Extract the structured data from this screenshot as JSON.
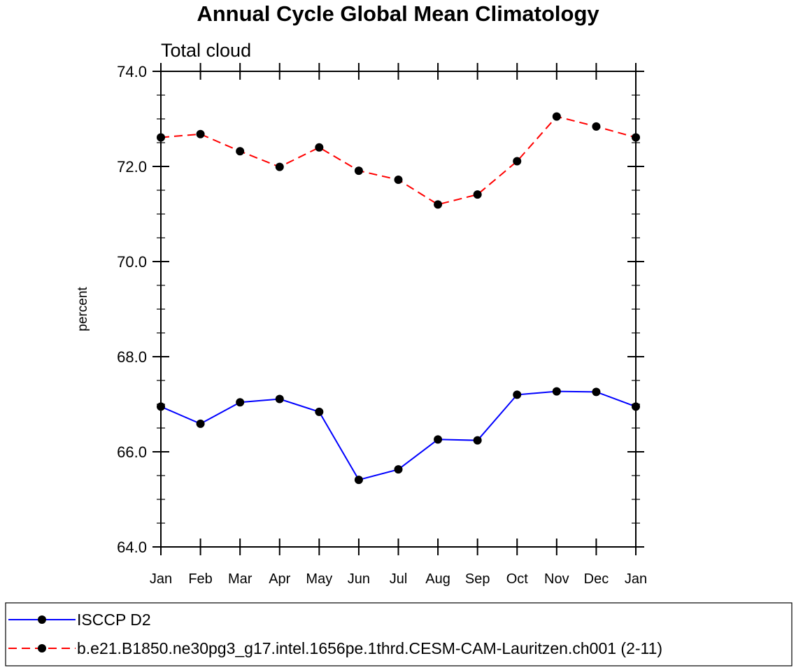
{
  "chart_data": {
    "type": "line",
    "title": "Annual Cycle Global Mean Climatology",
    "subtitle": "Total cloud",
    "ylabel": "percent",
    "xlabel": "",
    "categories": [
      "Jan",
      "Feb",
      "Mar",
      "Apr",
      "May",
      "Jun",
      "Jul",
      "Aug",
      "Sep",
      "Oct",
      "Nov",
      "Dec",
      "Jan"
    ],
    "ylim": [
      64.0,
      74.0
    ],
    "yticks": [
      "64.0",
      "66.0",
      "68.0",
      "70.0",
      "72.0",
      "74.0"
    ],
    "grid": false,
    "legend_position": "bottom",
    "series": [
      {
        "name": "ISCCP D2",
        "color": "#0000ff",
        "dash": "solid",
        "values": [
          66.95,
          66.59,
          67.04,
          67.11,
          66.84,
          65.41,
          65.63,
          66.26,
          66.24,
          67.2,
          67.27,
          67.26,
          66.95
        ]
      },
      {
        "name": "b.e21.B1850.ne30pg3_g17.intel.1656pe.1thrd.CESM-CAM-Lauritzen.ch001 (2-11)",
        "color": "#ff0000",
        "dash": "dashed",
        "values": [
          72.61,
          72.68,
          72.32,
          71.99,
          72.4,
          71.91,
          71.72,
          71.2,
          71.41,
          72.11,
          73.05,
          72.84,
          72.61
        ]
      }
    ]
  }
}
